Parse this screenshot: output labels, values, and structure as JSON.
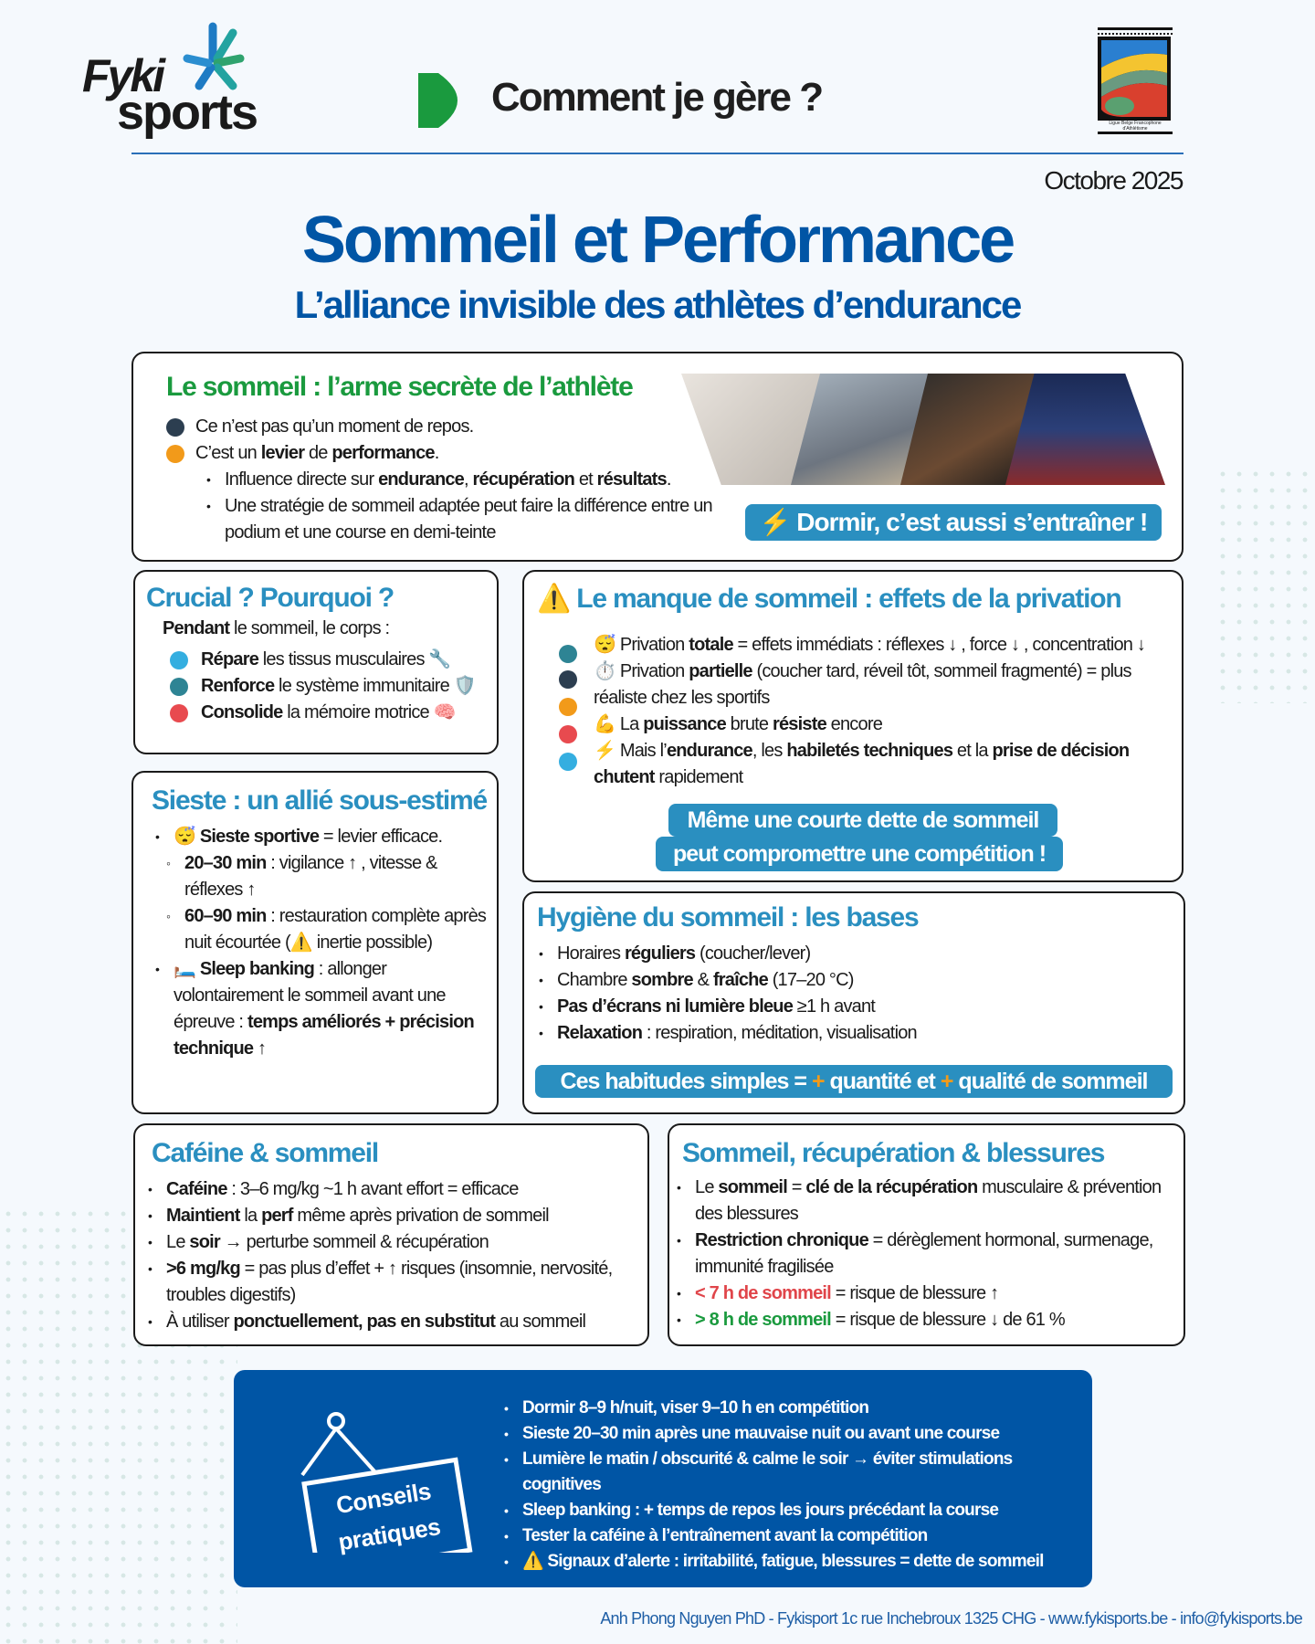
{
  "header": {
    "brand_top": "Fyki",
    "brand_bottom": "sports",
    "series_title": "Comment je gère ?",
    "partner_logo_text": "Ligue Belge Francophone d'Athlétisme",
    "date": "Octobre 2025"
  },
  "title": "Sommeil et Performance",
  "subtitle": "L’alliance invisible des athlètes d’endurance",
  "colors": {
    "primary": "#0055a5",
    "accent": "#2a8fc0",
    "green": "#1a9a3e",
    "orange": "#f29a1a",
    "red": "#e0454a"
  },
  "intro": {
    "title": "Le sommeil : l’arme secrète de l’athlète",
    "items": [
      [
        [
          "Ce n’est pas qu’un moment de repos."
        ]
      ],
      [
        [
          "C’est un "
        ],
        [
          "levier",
          "b"
        ],
        [
          " de "
        ],
        [
          "performance",
          "b"
        ],
        [
          "."
        ]
      ]
    ],
    "sub": [
      [
        [
          "Influence directe sur "
        ],
        [
          "endurance",
          "b"
        ],
        [
          ", "
        ],
        [
          "récupération",
          "b"
        ],
        [
          " et "
        ],
        [
          "résultats",
          "b"
        ],
        [
          "."
        ]
      ],
      [
        [
          "Une stratégie de sommeil adaptée peut faire la différence entre un podium et une course en demi-teinte"
        ]
      ]
    ],
    "callout": "⚡ Dormir, c’est aussi s’entraîner !"
  },
  "crucial": {
    "title": "Crucial ? Pourquoi ?",
    "lead": [
      [
        "Pendant",
        "b"
      ],
      [
        " le sommeil, le corps :"
      ]
    ],
    "items": [
      [
        [
          "Répare",
          "b"
        ],
        [
          " les tissus musculaires 🔧"
        ]
      ],
      [
        [
          "Renforce",
          "b"
        ],
        [
          " le système immunitaire 🛡️"
        ]
      ],
      [
        [
          "Consolide",
          "b"
        ],
        [
          " la mémoire motrice 🧠"
        ]
      ]
    ]
  },
  "manque": {
    "title": "Le manque de sommeil : effets de la privation",
    "items": [
      [
        [
          "😴 Privation "
        ],
        [
          "totale",
          "b"
        ],
        [
          " = effets immédiats : réflexes ↓ , force ↓ , concentration ↓"
        ]
      ],
      [
        [
          "⏱️ Privation "
        ],
        [
          "partielle",
          "b"
        ],
        [
          " (coucher tard, réveil tôt, sommeil fragmenté) = plus réaliste chez les sportifs"
        ]
      ],
      [
        [
          "💪 La "
        ],
        [
          "puissance",
          "b"
        ],
        [
          " brute "
        ],
        [
          "résiste",
          "b"
        ],
        [
          " encore"
        ]
      ],
      [
        [
          "⚡ Mais l’"
        ],
        [
          "endurance",
          "b"
        ],
        [
          ", les "
        ],
        [
          "habiletés techniques",
          "b"
        ],
        [
          " et la "
        ],
        [
          "prise de décision",
          "b"
        ],
        [
          " "
        ],
        [
          "chutent",
          "b"
        ],
        [
          " rapidement"
        ]
      ]
    ],
    "callout_1": "Même une courte dette de sommeil",
    "callout_2": "peut compromettre une compétition !"
  },
  "sieste": {
    "title": "Sieste : un allié sous-estimé",
    "item1": [
      [
        "😴 "
      ],
      [
        "Sieste sportive",
        "b"
      ],
      [
        " = levier efficace."
      ]
    ],
    "sub": [
      [
        [
          "20–30 min",
          "b"
        ],
        [
          " : vigilance ↑ , vitesse & réflexes ↑"
        ]
      ],
      [
        [
          "60–90 min",
          "b"
        ],
        [
          " : restauration complète après nuit écourtée (⚠️ inertie possible)"
        ]
      ]
    ],
    "item2": [
      [
        "🛏️ "
      ],
      [
        "Sleep banking",
        "b"
      ],
      [
        " : allonger volontairement le sommeil avant une épreuve : "
      ],
      [
        "temps améliorés + précision technique ↑",
        "b"
      ]
    ]
  },
  "hygiene": {
    "title": "Hygiène du sommeil : les bases",
    "items": [
      [
        [
          "Horaires "
        ],
        [
          "réguliers",
          "b"
        ],
        [
          " (coucher/lever)"
        ]
      ],
      [
        [
          "Chambre "
        ],
        [
          "sombre",
          "b"
        ],
        [
          " & "
        ],
        [
          "fraîche",
          "b"
        ],
        [
          " (17–20 °C)"
        ]
      ],
      [
        [
          "Pas d’écrans ni lumière bleue",
          "b"
        ],
        [
          " ≥1 h avant"
        ]
      ],
      [
        [
          "Relaxation",
          "b"
        ],
        [
          " : respiration, méditation, visualisation"
        ]
      ]
    ],
    "callout": [
      [
        "Ces habitudes simples = "
      ],
      [
        "+",
        "orange"
      ],
      [
        " quantité et "
      ],
      [
        "+",
        "orange"
      ],
      [
        " qualité de sommeil"
      ]
    ]
  },
  "cafeine": {
    "title": "Caféine & sommeil",
    "items": [
      [
        [
          "Caféine",
          "b"
        ],
        [
          " : 3–6 mg/kg ~1 h avant effort = efficace"
        ]
      ],
      [
        [
          "Maintient",
          "b"
        ],
        [
          " la "
        ],
        [
          "perf",
          "b"
        ],
        [
          " même après privation de sommeil"
        ]
      ],
      [
        [
          "Le "
        ],
        [
          "soir",
          "b"
        ],
        [
          " → perturbe sommeil & récupération"
        ]
      ],
      [
        [
          ">6 mg/kg",
          "b"
        ],
        [
          " = pas plus d’effet + ↑ risques (insomnie, nervosité, troubles digestifs)"
        ]
      ],
      [
        [
          "À utiliser "
        ],
        [
          "ponctuellement, pas en substitut",
          "b"
        ],
        [
          " au sommeil"
        ]
      ]
    ]
  },
  "blessures": {
    "title": "Sommeil, récupération & blessures",
    "items": [
      [
        [
          "Le "
        ],
        [
          "sommeil",
          "b"
        ],
        [
          " = "
        ],
        [
          "clé de la récupération",
          "b"
        ],
        [
          " musculaire & prévention des blessures"
        ]
      ],
      [
        [
          "Restriction chronique",
          "b"
        ],
        [
          " = dérèglement hormonal, surmenage, immunité fragilisée"
        ]
      ],
      [
        [
          "< 7 h de sommeil",
          "red"
        ],
        [
          " = risque de blessure ↑"
        ]
      ],
      [
        [
          "> 8 h de sommeil",
          "green"
        ],
        [
          " = risque de blessure ↓ de 61 %"
        ]
      ]
    ]
  },
  "conseils": {
    "sign_1": "Conseils",
    "sign_2": "pratiques",
    "items": [
      [
        [
          "Dormir 8–9 h/nuit, viser 9–10 h en compétition"
        ]
      ],
      [
        [
          "Sieste 20–30 min après une mauvaise nuit ou avant une course"
        ]
      ],
      [
        [
          "Lumière le matin / obscurité & calme le soir → éviter stimulations cognitives"
        ]
      ],
      [
        [
          "Sleep banking : + temps de repos les jours précédant la course"
        ]
      ],
      [
        [
          "Tester la caféine à l’entraînement avant la compétition"
        ]
      ],
      [
        [
          "⚠️ Signaux d’alerte : irritabilité, fatigue, blessures = dette de sommeil"
        ]
      ]
    ]
  },
  "footer": {
    "text": "Anh Phong Nguyen PhD - Fykisport 1c rue Inchebroux 1325 CHG - ",
    "website": "www.fykisports.be",
    "sep": " - ",
    "email": "info@fykisports.be"
  }
}
